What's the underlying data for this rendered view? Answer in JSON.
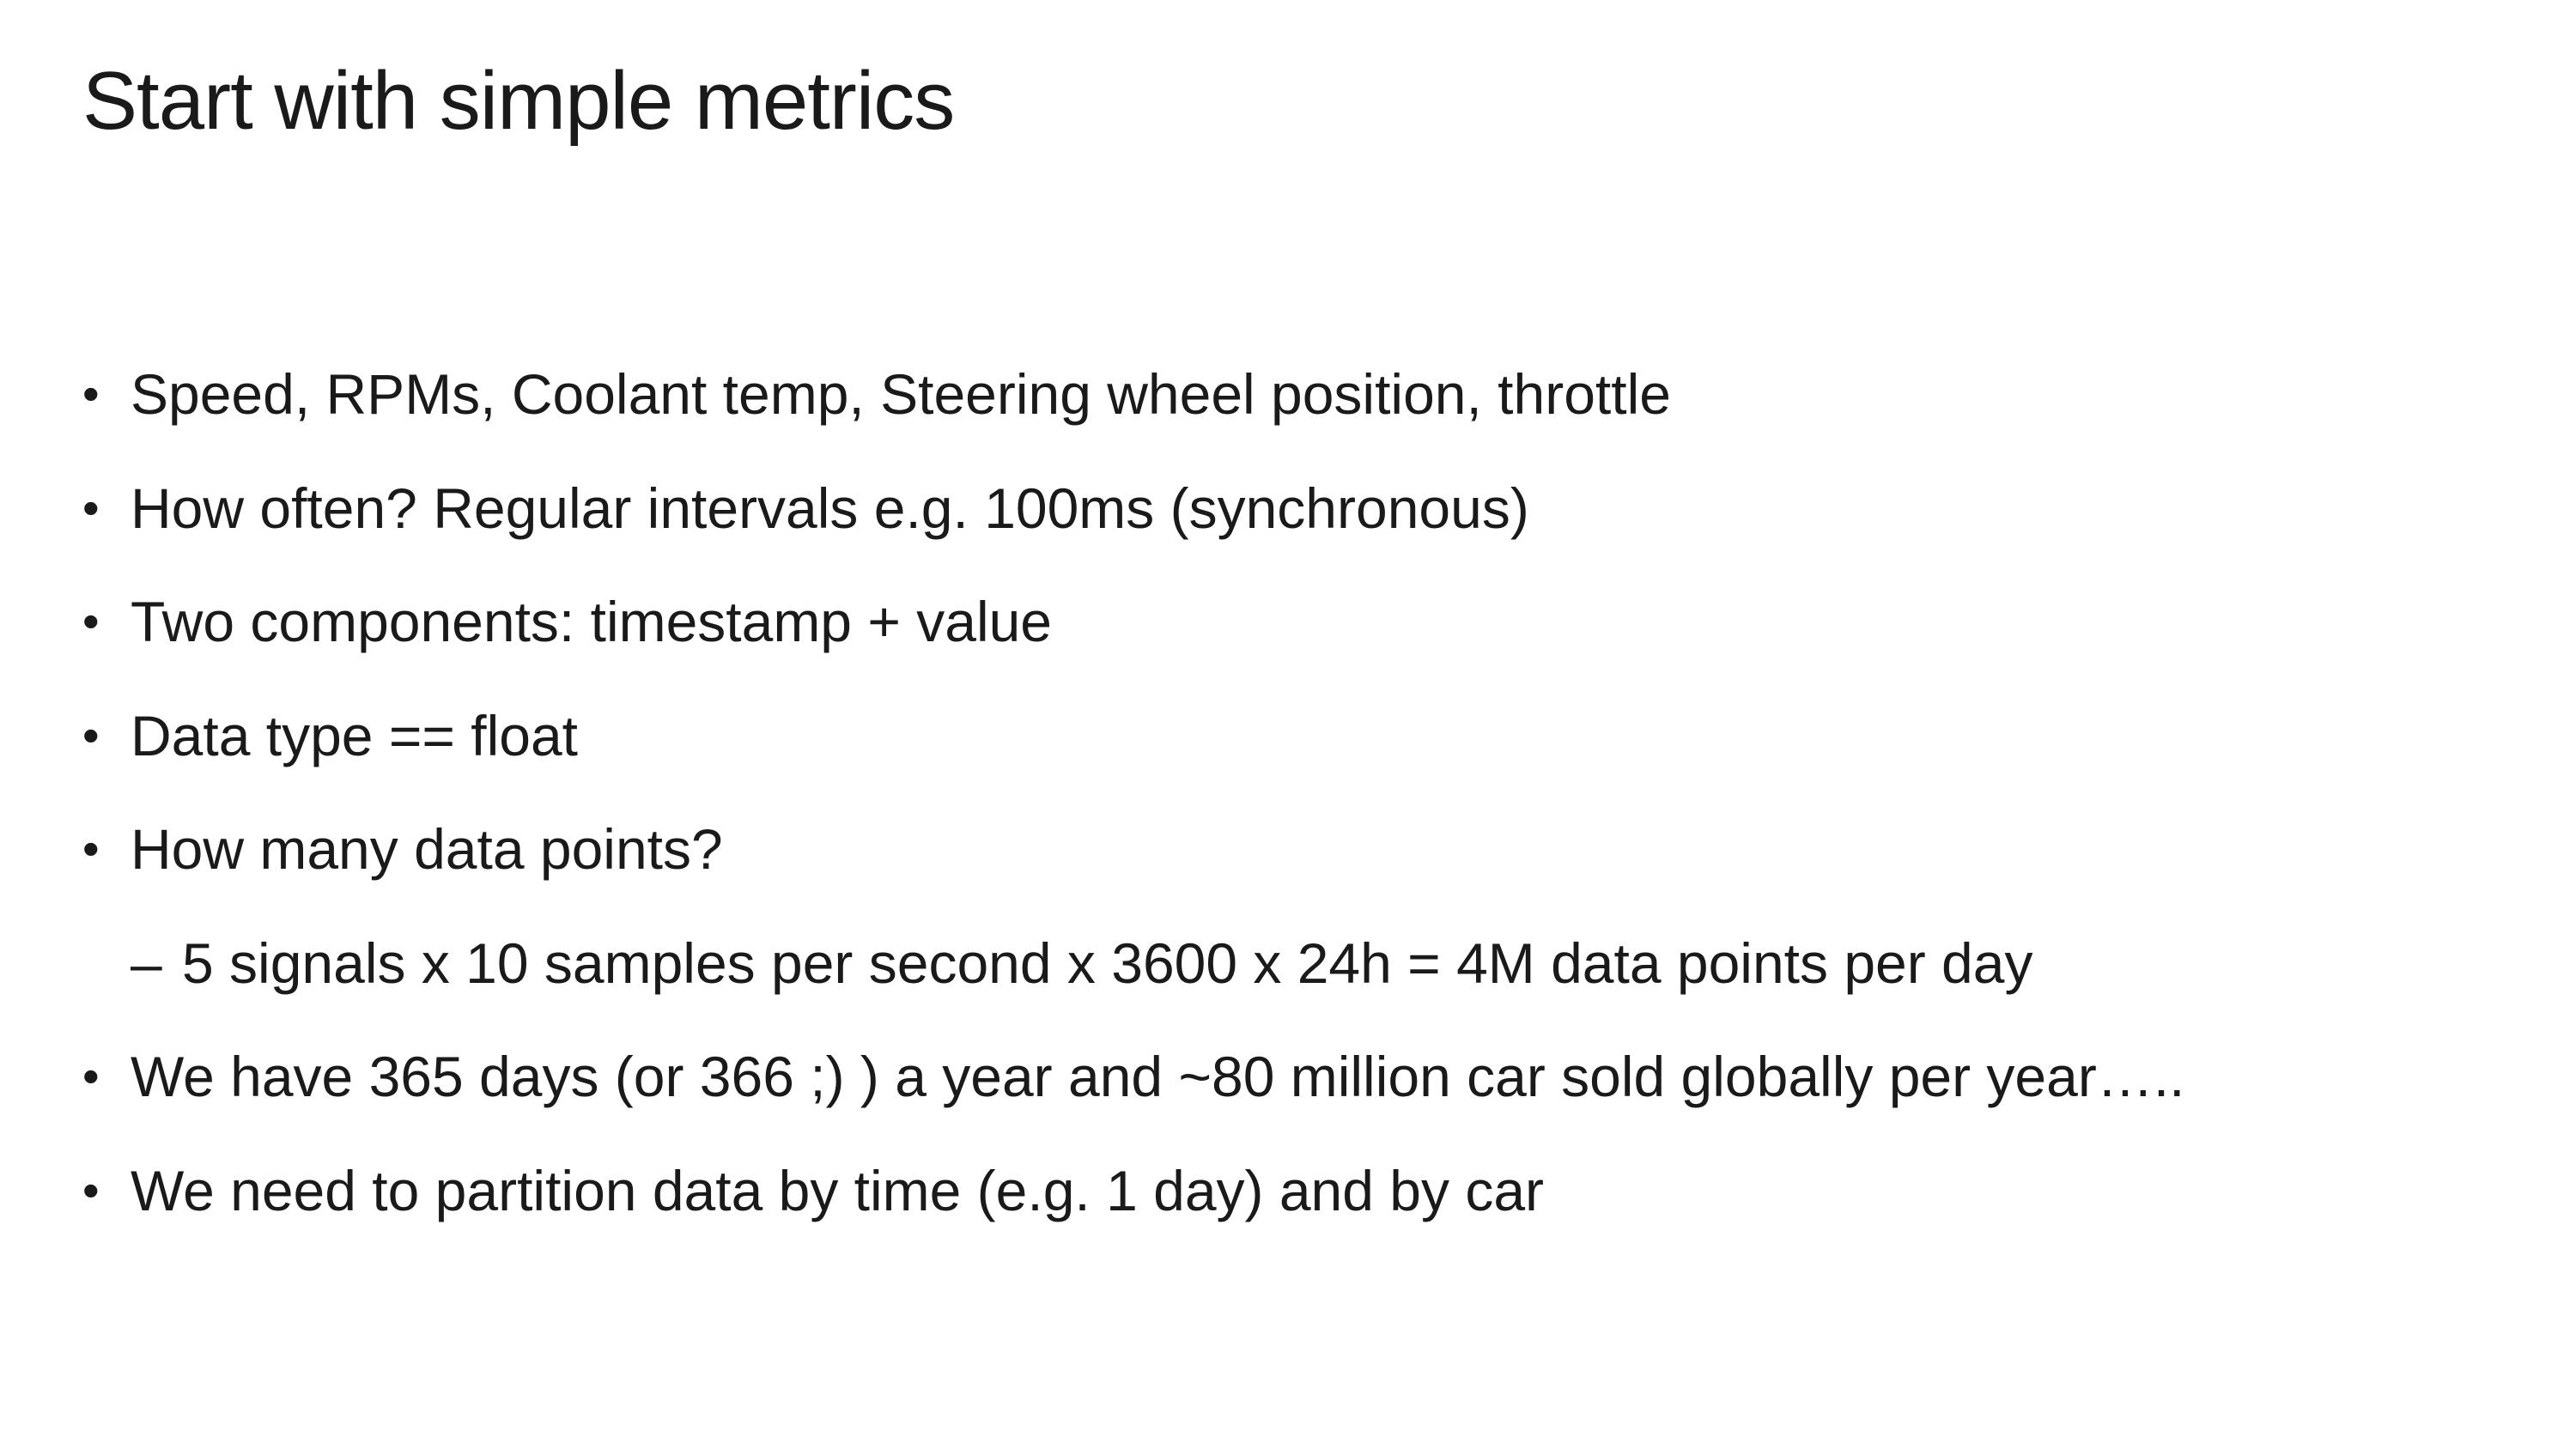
{
  "slide": {
    "title": "Start with simple metrics",
    "bullet_symbol": "•",
    "sub_bullet_symbol": "–",
    "items": [
      {
        "level": 1,
        "text": "Speed, RPMs, Coolant temp, Steering wheel position, throttle"
      },
      {
        "level": 1,
        "text": "How often? Regular intervals e.g. 100ms (synchronous)"
      },
      {
        "level": 1,
        "text": "Two components: timestamp + value"
      },
      {
        "level": 1,
        "text": "Data type == float"
      },
      {
        "level": 1,
        "text": "How many data points?"
      },
      {
        "level": 2,
        "text": "5 signals x 10 samples per second x 3600 x 24h = 4M data points per day"
      },
      {
        "level": 1,
        "text": "We have 365 days (or 366 ;) ) a year and ~80 million car sold globally per year….."
      },
      {
        "level": 1,
        "text": "We  need to partition data by time (e.g. 1 day) and by car"
      }
    ]
  }
}
